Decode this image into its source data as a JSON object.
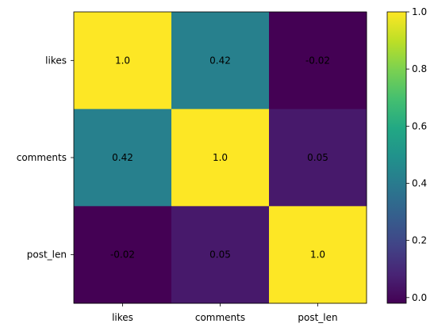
{
  "chart_data": {
    "type": "heatmap",
    "title": "",
    "xlabel": "",
    "ylabel": "",
    "x_categories": [
      "likes",
      "comments",
      "post_len"
    ],
    "y_categories": [
      "likes",
      "comments",
      "post_len"
    ],
    "values": [
      [
        1.0,
        0.42,
        -0.02
      ],
      [
        0.42,
        1.0,
        0.05
      ],
      [
        -0.02,
        0.05,
        1.0
      ]
    ],
    "cell_labels": [
      [
        "1.0",
        "0.42",
        "-0.02"
      ],
      [
        "0.42",
        "1.0",
        "0.05"
      ],
      [
        "-0.02",
        "0.05",
        "1.0"
      ]
    ],
    "colormap": "viridis",
    "value_range": [
      -0.02,
      1.0
    ],
    "grid": false,
    "legend": "right",
    "colorbar": {
      "ticks": [
        0.0,
        0.2,
        0.4,
        0.6,
        0.8,
        1.0
      ],
      "tick_labels": [
        "0.0",
        "0.2",
        "0.4",
        "0.6",
        "0.8",
        "1.0"
      ]
    }
  }
}
